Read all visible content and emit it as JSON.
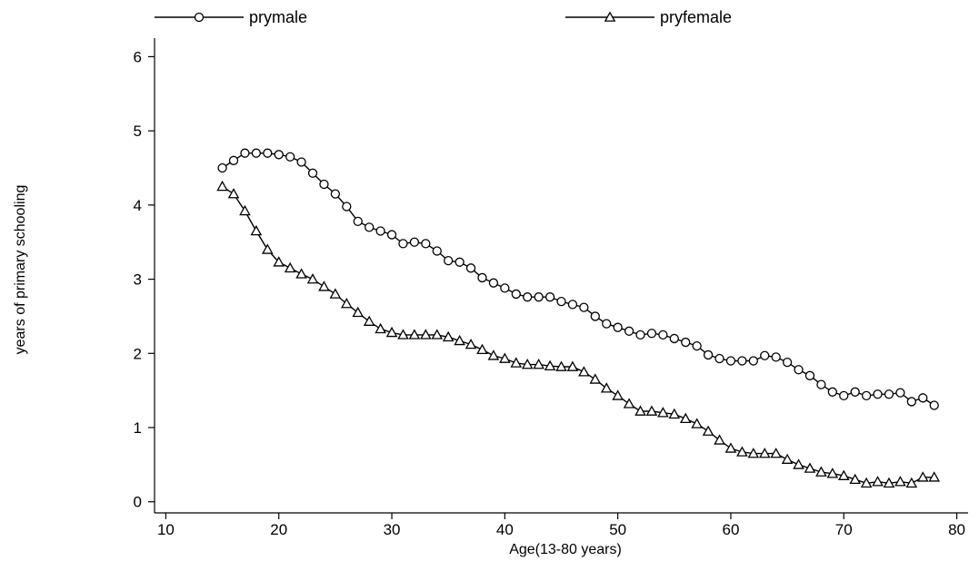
{
  "chart_data": {
    "type": "line",
    "title": "",
    "xlabel": "Age(13-80 years)",
    "ylabel": "years of primary schooling",
    "xlim": [
      9,
      81
    ],
    "ylim": [
      -0.15,
      6.25
    ],
    "xticks": [
      10,
      20,
      30,
      40,
      50,
      60,
      70,
      80
    ],
    "yticks": [
      0,
      1,
      2,
      3,
      4,
      5,
      6
    ],
    "grid": false,
    "legend_position": "top",
    "x": [
      15,
      16,
      17,
      18,
      19,
      20,
      21,
      22,
      23,
      24,
      25,
      26,
      27,
      28,
      29,
      30,
      31,
      32,
      33,
      34,
      35,
      36,
      37,
      38,
      39,
      40,
      41,
      42,
      43,
      44,
      45,
      46,
      47,
      48,
      49,
      50,
      51,
      52,
      53,
      54,
      55,
      56,
      57,
      58,
      59,
      60,
      61,
      62,
      63,
      64,
      65,
      66,
      67,
      68,
      69,
      70,
      71,
      72,
      73,
      74,
      75,
      76,
      77,
      78
    ],
    "series": [
      {
        "name": "prymale",
        "marker": "circle",
        "values": [
          4.5,
          4.6,
          4.7,
          4.7,
          4.7,
          4.68,
          4.65,
          4.58,
          4.43,
          4.28,
          4.15,
          3.98,
          3.78,
          3.7,
          3.65,
          3.6,
          3.48,
          3.5,
          3.48,
          3.38,
          3.25,
          3.23,
          3.15,
          3.02,
          2.95,
          2.88,
          2.8,
          2.76,
          2.76,
          2.76,
          2.7,
          2.66,
          2.62,
          2.5,
          2.4,
          2.35,
          2.3,
          2.25,
          2.27,
          2.25,
          2.2,
          2.15,
          2.1,
          1.98,
          1.93,
          1.9,
          1.9,
          1.9,
          1.97,
          1.95,
          1.88,
          1.78,
          1.7,
          1.58,
          1.48,
          1.43,
          1.48,
          1.43,
          1.45,
          1.45,
          1.47,
          1.35,
          1.4,
          1.3
        ]
      },
      {
        "name": "pryfemale",
        "marker": "triangle",
        "values": [
          4.25,
          4.15,
          3.92,
          3.65,
          3.4,
          3.23,
          3.15,
          3.07,
          3.0,
          2.9,
          2.8,
          2.67,
          2.55,
          2.43,
          2.33,
          2.28,
          2.25,
          2.25,
          2.25,
          2.25,
          2.22,
          2.17,
          2.12,
          2.05,
          1.97,
          1.93,
          1.87,
          1.85,
          1.85,
          1.83,
          1.82,
          1.82,
          1.75,
          1.65,
          1.53,
          1.43,
          1.32,
          1.22,
          1.22,
          1.2,
          1.18,
          1.12,
          1.05,
          0.95,
          0.83,
          0.72,
          0.67,
          0.65,
          0.65,
          0.65,
          0.57,
          0.5,
          0.45,
          0.4,
          0.38,
          0.35,
          0.3,
          0.25,
          0.27,
          0.25,
          0.27,
          0.25,
          0.33,
          0.33
        ]
      }
    ]
  }
}
